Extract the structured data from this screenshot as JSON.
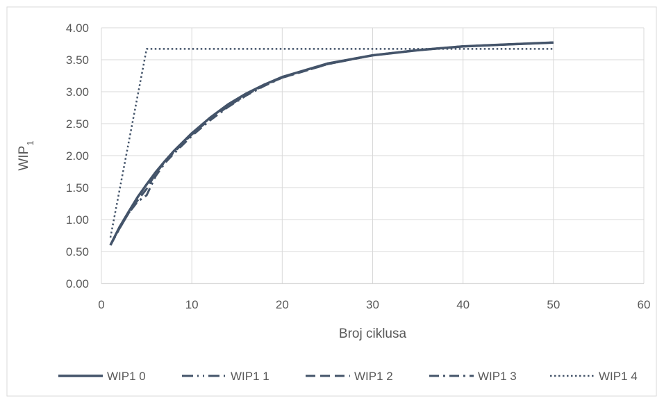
{
  "chart_data": {
    "type": "line",
    "title": "",
    "xlabel": "Broj ciklusa",
    "ylabel_main": "WIP",
    "ylabel_sub": "1",
    "xlim": [
      0,
      60
    ],
    "ylim": [
      0,
      4
    ],
    "x_ticks": [
      0,
      10,
      20,
      30,
      40,
      50,
      60
    ],
    "y_ticks": [
      "0.00",
      "0.50",
      "1.00",
      "1.50",
      "2.00",
      "2.50",
      "3.00",
      "3.50",
      "4.00"
    ],
    "grid": true,
    "legend_position": "bottom",
    "line_color": "#44546a",
    "series": [
      {
        "name": "WIP1 0",
        "dash": "solid",
        "x": [
          1,
          2,
          3,
          4,
          5,
          6,
          7,
          8,
          9,
          10,
          12,
          14,
          16,
          18,
          20,
          25,
          30,
          35,
          40,
          45,
          50
        ],
        "values": [
          0.6,
          0.88,
          1.12,
          1.35,
          1.55,
          1.74,
          1.91,
          2.07,
          2.21,
          2.35,
          2.59,
          2.8,
          2.97,
          3.11,
          3.23,
          3.44,
          3.57,
          3.65,
          3.71,
          3.74,
          3.77
        ]
      },
      {
        "name": "WIP1 1",
        "dash": "longdashdotdot",
        "x": [
          1,
          2,
          3,
          4,
          5,
          6,
          7,
          8,
          9,
          10,
          12,
          14,
          16,
          18,
          20,
          25,
          30,
          35,
          40,
          45,
          50
        ],
        "values": [
          0.6,
          0.88,
          1.12,
          1.35,
          1.55,
          1.74,
          1.91,
          2.07,
          2.21,
          2.35,
          2.59,
          2.8,
          2.97,
          3.11,
          3.23,
          3.44,
          3.57,
          3.65,
          3.71,
          3.74,
          3.77
        ]
      },
      {
        "name": "WIP1 2",
        "dash": "dash",
        "x": [
          1,
          2,
          3,
          4,
          5,
          6,
          7,
          8,
          9,
          10,
          12,
          14,
          16,
          18,
          20,
          25,
          30,
          35,
          40,
          45,
          50
        ],
        "values": [
          0.6,
          0.86,
          1.1,
          1.3,
          1.48,
          1.72,
          1.9,
          2.05,
          2.19,
          2.33,
          2.57,
          2.77,
          2.95,
          3.1,
          3.22,
          3.43,
          3.57,
          3.65,
          3.71,
          3.74,
          3.77
        ]
      },
      {
        "name": "WIP1 3",
        "dash": "dashdot",
        "x": [
          1,
          2,
          3,
          4,
          5,
          6,
          7,
          8,
          9,
          10,
          12,
          14,
          16,
          18,
          20,
          25,
          30,
          35,
          40,
          45,
          50
        ],
        "values": [
          0.6,
          0.86,
          1.1,
          1.28,
          1.38,
          1.68,
          1.88,
          2.03,
          2.17,
          2.31,
          2.55,
          2.76,
          2.94,
          3.09,
          3.22,
          3.43,
          3.57,
          3.65,
          3.71,
          3.74,
          3.77
        ]
      },
      {
        "name": "WIP1 4",
        "dash": "dot",
        "x": [
          1,
          5,
          10,
          20,
          30,
          40,
          50
        ],
        "values": [
          0.72,
          3.67,
          3.67,
          3.67,
          3.67,
          3.67,
          3.67
        ]
      }
    ]
  }
}
